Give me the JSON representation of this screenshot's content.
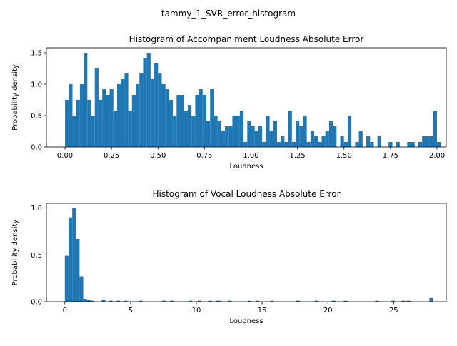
{
  "figure_title": "tammy_1_SVR_error_histogram",
  "chart_data": [
    {
      "type": "bar",
      "title": "Histogram of Accompaniment Loudness Absolute Error",
      "xlabel": "Loudness",
      "ylabel": "Probability density",
      "xlim": [
        -0.1,
        2.05
      ],
      "ylim": [
        0,
        1.58
      ],
      "xticks": [
        0.0,
        0.25,
        0.5,
        0.75,
        1.0,
        1.25,
        1.5,
        1.75,
        2.0
      ],
      "xtick_labels": [
        "0.00",
        "0.25",
        "0.50",
        "0.75",
        "1.00",
        "1.25",
        "1.50",
        "1.75",
        "2.00"
      ],
      "yticks": [
        0.0,
        0.5,
        1.0,
        1.5
      ],
      "ytick_labels": [
        "0.0",
        "0.5",
        "1.0",
        "1.5"
      ],
      "bin_start": 0.0,
      "bin_width": 0.02,
      "values": [
        0.75,
        1.0,
        0.5,
        0.75,
        1.0,
        1.5,
        0.75,
        0.5,
        1.25,
        0.75,
        0.92,
        0.83,
        0.92,
        0.58,
        1.0,
        1.08,
        1.17,
        0.58,
        0.83,
        1.0,
        1.17,
        1.42,
        1.5,
        1.08,
        1.33,
        1.17,
        1.0,
        0.92,
        0.75,
        0.5,
        0.83,
        0.83,
        0.58,
        0.67,
        0.5,
        0.83,
        0.92,
        0.83,
        0.42,
        0.92,
        0.5,
        0.42,
        0.25,
        0.33,
        0.33,
        0.5,
        0.5,
        0.58,
        0.08,
        0.42,
        0.33,
        0.25,
        0.33,
        0.08,
        0.5,
        0.25,
        0.42,
        0.08,
        0.17,
        0.08,
        0.58,
        0.08,
        0.42,
        0.33,
        0.5,
        0.08,
        0.25,
        0.17,
        0.08,
        0.17,
        0.25,
        0.42,
        0.33,
        0.0,
        0.17,
        0.08,
        0.5,
        0.0,
        0.08,
        0.25,
        0.0,
        0.17,
        0.08,
        0.0,
        0.17,
        0.0,
        0.0,
        0.08,
        0.0,
        0.08,
        0.0,
        0.0,
        0.08,
        0.08,
        0.0,
        0.08,
        0.17,
        0.17,
        0.17,
        0.58,
        0.08
      ],
      "color": "#1f77b4"
    },
    {
      "type": "bar",
      "title": "Histogram of Vocal Loudness Absolute Error",
      "xlabel": "Loudness",
      "ylabel": "Probability density",
      "xlim": [
        -1.4,
        29.0
      ],
      "ylim": [
        0,
        1.05
      ],
      "xticks": [
        0,
        5,
        10,
        15,
        20,
        25
      ],
      "xtick_labels": [
        "0",
        "5",
        "10",
        "15",
        "20",
        "25"
      ],
      "yticks": [
        0.0,
        0.5,
        1.0
      ],
      "ytick_labels": [
        "0.0",
        "0.5",
        "1.0"
      ],
      "bin_start": 0.0,
      "bin_width": 0.28,
      "values": [
        0.49,
        0.9,
        1.0,
        0.67,
        0.27,
        0.03,
        0.02,
        0.01,
        0.0,
        0.0,
        0.02,
        0.0,
        0.01,
        0.0,
        0.01,
        0.0,
        0.01,
        0.0,
        0.0,
        0.0,
        0.01,
        0.0,
        0.0,
        0.0,
        0.0,
        0.0,
        0.0,
        0.0,
        0.0,
        0.0,
        0.0,
        0.0,
        0.0,
        0.0,
        0.0,
        0.0,
        0.01,
        0.0,
        0.0,
        0.0,
        0.0,
        0.01,
        0.0,
        0.0,
        0.0,
        0.0,
        0.0,
        0.0,
        0.0,
        0.0,
        0.0,
        0.0,
        0.0,
        0.0,
        0.0,
        0.0,
        0.0,
        0.0,
        0.0,
        0.0,
        0.0,
        0.0,
        0.0,
        0.0,
        0.0,
        0.0,
        0.0,
        0.0,
        0.0,
        0.0,
        0.0,
        0.0,
        0.0,
        0.0,
        0.0,
        0.0,
        0.0,
        0.0,
        0.0,
        0.0,
        0.0,
        0.0,
        0.0,
        0.0,
        0.0,
        0.0,
        0.0,
        0.0,
        0.0,
        0.0,
        0.0,
        0.0,
        0.0,
        0.0,
        0.0,
        0.0,
        0.0,
        0.0,
        0.0,
        0.04
      ],
      "extra_bins": [
        {
          "x": 7.4,
          "value": 0.01
        },
        {
          "x": 8.0,
          "value": 0.01
        },
        {
          "x": 9.4,
          "value": 0.01
        },
        {
          "x": 10.9,
          "value": 0.01
        },
        {
          "x": 11.6,
          "value": 0.01
        },
        {
          "x": 12.4,
          "value": 0.01
        },
        {
          "x": 13.9,
          "value": 0.01
        },
        {
          "x": 14.5,
          "value": 0.01
        },
        {
          "x": 15.6,
          "value": 0.01
        },
        {
          "x": 17.6,
          "value": 0.01
        },
        {
          "x": 19.0,
          "value": 0.01
        },
        {
          "x": 20.3,
          "value": 0.01
        },
        {
          "x": 21.2,
          "value": 0.01
        },
        {
          "x": 23.6,
          "value": 0.01
        },
        {
          "x": 24.8,
          "value": 0.01
        },
        {
          "x": 25.6,
          "value": 0.01
        },
        {
          "x": 26.0,
          "value": 0.01
        }
      ],
      "color": "#1f77b4"
    }
  ]
}
